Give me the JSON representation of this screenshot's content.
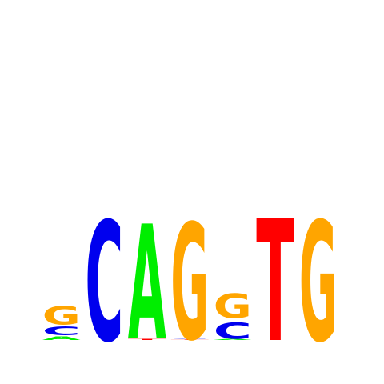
{
  "chart_data": {
    "type": "sequence-logo",
    "alphabet": [
      "A",
      "C",
      "G",
      "T"
    ],
    "colors": {
      "A": "#00ee00",
      "C": "#0000ee",
      "G": "#ffa500",
      "T": "#ff0000"
    },
    "ylim": [
      0,
      2
    ],
    "positions": [
      {
        "index": 1,
        "stack": [
          {
            "letter": "A",
            "height": 0.03
          },
          {
            "letter": "C",
            "height": 0.07
          },
          {
            "letter": "G",
            "height": 0.15
          }
        ]
      },
      {
        "index": 2,
        "stack": [
          {
            "letter": "C",
            "height": 0.98
          }
        ]
      },
      {
        "index": 3,
        "stack": [
          {
            "letter": "T",
            "height": 0.01
          },
          {
            "letter": "A",
            "height": 0.94
          }
        ]
      },
      {
        "index": 4,
        "stack": [
          {
            "letter": "T",
            "height": 0.005
          },
          {
            "letter": "C",
            "height": 0.005
          },
          {
            "letter": "G",
            "height": 0.95
          }
        ]
      },
      {
        "index": 5,
        "stack": [
          {
            "letter": "A",
            "height": 0.01
          },
          {
            "letter": "C",
            "height": 0.13
          },
          {
            "letter": "G",
            "height": 0.2
          }
        ]
      },
      {
        "index": 6,
        "stack": [
          {
            "letter": "T",
            "height": 1.0
          }
        ]
      },
      {
        "index": 7,
        "stack": [
          {
            "letter": "G",
            "height": 0.98
          }
        ]
      }
    ]
  }
}
